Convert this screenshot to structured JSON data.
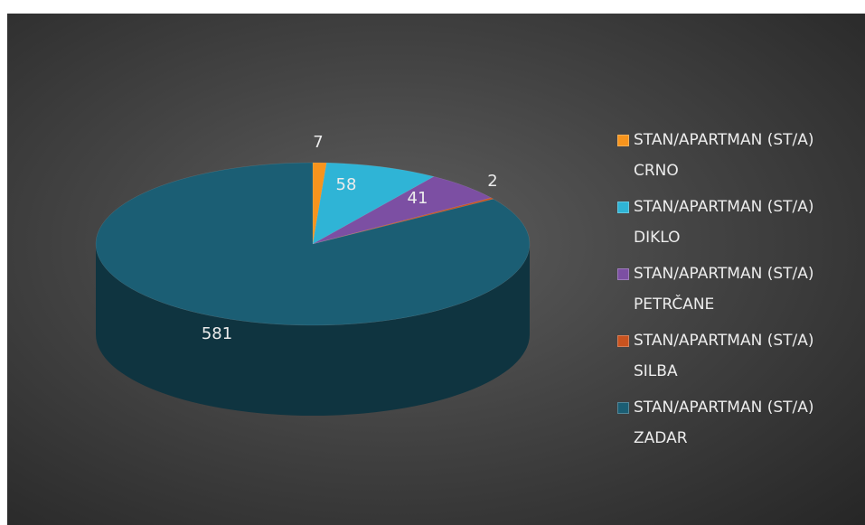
{
  "chart_data": {
    "type": "pie",
    "categories": [
      "STAN/APARTMAN (ST/A) CRNO",
      "STAN/APARTMAN (ST/A) DIKLO",
      "STAN/APARTMAN (ST/A) PETRČANE",
      "STAN/APARTMAN (ST/A) SILBA",
      "STAN/APARTMAN (ST/A) ZADAR"
    ],
    "values": [
      7,
      58,
      41,
      2,
      581
    ],
    "colors": [
      "#f7941d",
      "#2fb4d6",
      "#7c4fa3",
      "#c9531f",
      "#1b5e74"
    ],
    "legend": "right"
  }
}
